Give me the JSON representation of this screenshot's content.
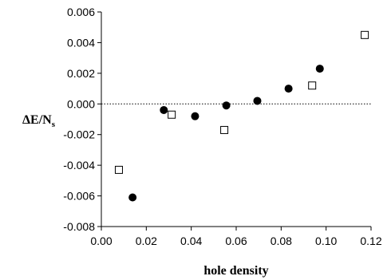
{
  "chart_data": {
    "type": "scatter",
    "title": "",
    "xlabel": "hole density",
    "ylabel_main": "ΔE/N",
    "ylabel_sub": "s",
    "xlim": [
      0.0,
      0.12
    ],
    "ylim": [
      -0.008,
      0.006
    ],
    "x_ticks": [
      0.0,
      0.02,
      0.04,
      0.06,
      0.08,
      0.1,
      0.12
    ],
    "x_tick_labels": [
      "0.00",
      "0.02",
      "0.04",
      "0.06",
      "0.08",
      "0.10",
      "0.12"
    ],
    "y_ticks": [
      -0.008,
      -0.006,
      -0.004,
      -0.002,
      0.0,
      0.002,
      0.004,
      0.006
    ],
    "y_tick_labels": [
      "-0.008",
      "-0.006",
      "-0.004",
      "-0.002",
      "0.000",
      "0.002",
      "0.004",
      "0.006"
    ],
    "grid": false,
    "reference_line": {
      "y": 0.0,
      "style": "dotted"
    },
    "series": [
      {
        "marker": "filled-circle",
        "color": "#000000",
        "x": [
          0.0139,
          0.0278,
          0.0417,
          0.0556,
          0.0694,
          0.0833,
          0.0972
        ],
        "y": [
          -0.0061,
          -0.0004,
          -0.0008,
          -0.0001,
          0.0002,
          0.001,
          0.0023
        ]
      },
      {
        "marker": "open-square",
        "color": "#000000",
        "x": [
          0.0078,
          0.0313,
          0.0547,
          0.0938,
          0.1172
        ],
        "y": [
          -0.0043,
          -0.0007,
          -0.0017,
          0.0012,
          0.0045
        ]
      }
    ]
  }
}
